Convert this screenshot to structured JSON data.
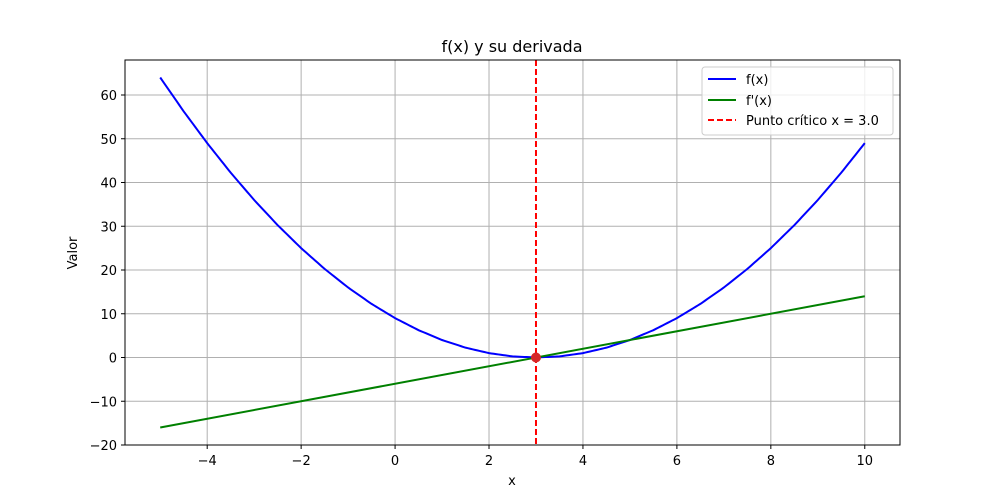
{
  "chart_data": {
    "type": "line",
    "title": "f(x) y su derivada",
    "xlabel": "x",
    "ylabel": "Valor",
    "xlim": [
      -5.75,
      10.75
    ],
    "ylim": [
      -20,
      68
    ],
    "xticks": [
      -4,
      -2,
      0,
      2,
      4,
      6,
      8,
      10
    ],
    "yticks": [
      -20,
      -10,
      0,
      10,
      20,
      30,
      40,
      50,
      60
    ],
    "grid": true,
    "legend_position": "top-right",
    "series": [
      {
        "name": "f(x)",
        "color": "#0000ff",
        "style": "solid",
        "x": [
          -5,
          -4.5,
          -4,
          -3.5,
          -3,
          -2.5,
          -2,
          -1.5,
          -1,
          -0.5,
          0,
          0.5,
          1,
          1.5,
          2,
          2.5,
          3,
          3.5,
          4,
          4.5,
          5,
          5.5,
          6,
          6.5,
          7,
          7.5,
          8,
          8.5,
          9,
          9.5,
          10
        ],
        "y": [
          64,
          56.25,
          49,
          42.25,
          36,
          30.25,
          25,
          20.25,
          16,
          12.25,
          9,
          6.25,
          4,
          2.25,
          1,
          0.25,
          0,
          0.25,
          1,
          2.25,
          4,
          6.25,
          9,
          12.25,
          16,
          20.25,
          25,
          30.25,
          36,
          42.25,
          49
        ]
      },
      {
        "name": "f'(x)",
        "color": "#008000",
        "style": "solid",
        "x": [
          -5,
          10
        ],
        "y": [
          -16,
          14
        ]
      }
    ],
    "vline": {
      "name": "Punto crítico x = 3.0",
      "x": 3.0,
      "color": "#ff0000",
      "style": "dashed"
    },
    "points": [
      {
        "x": 3.0,
        "y": 0,
        "color": "#d62728"
      }
    ]
  }
}
